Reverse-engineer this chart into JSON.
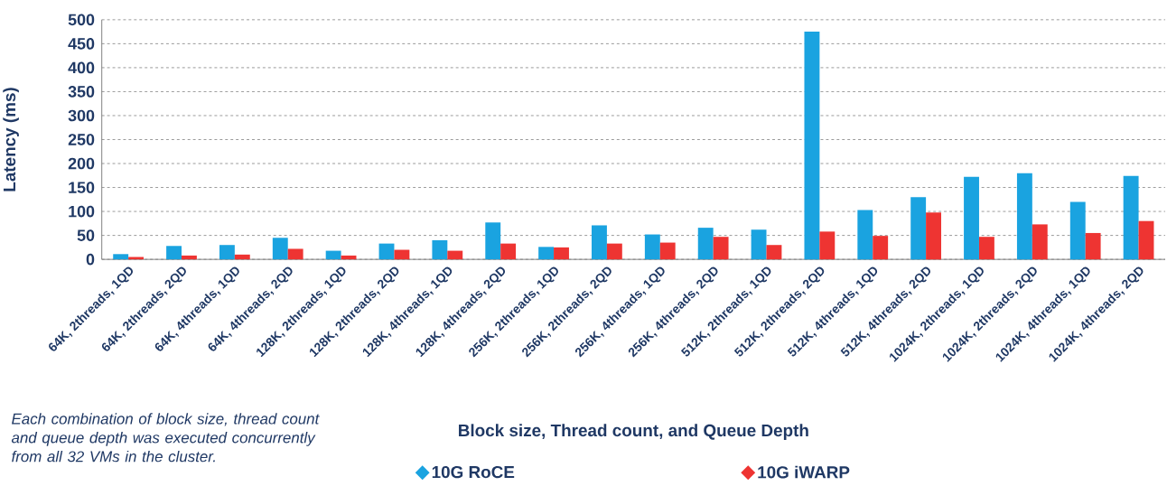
{
  "chart_data": {
    "type": "bar",
    "ylabel": "Latency (ms)",
    "xlabel": "Block size, Thread count, and Queue Depth",
    "categories": [
      "64K, 2threads, 1QD",
      "64K, 2threads, 2QD",
      "64K, 4threads, 1QD",
      "64K, 4threads, 2QD",
      "128K, 2threads, 1QD",
      "128K, 2threads, 2QD",
      "128K, 4threads, 1QD",
      "128K, 4threads, 2QD",
      "256K, 2threads, 1QD",
      "256K, 2threads, 2QD",
      "256K, 4threads, 1QD",
      "256K, 4threads, 2QD",
      "512K, 2threads, 1QD",
      "512K, 2threads, 2QD",
      "512K, 4threads, 1QD",
      "512K, 4threads, 2QD",
      "1024K, 2threads, 1QD",
      "1024K, 2threads, 2QD",
      "1024K, 4threads, 1QD",
      "1024K, 4threads, 2QD"
    ],
    "series": [
      {
        "name": "10G RoCE",
        "color": "#1aa3e0",
        "values": [
          11,
          28,
          30,
          45,
          18,
          33,
          40,
          77,
          26,
          71,
          52,
          66,
          62,
          475,
          103,
          130,
          172,
          180,
          120,
          174
        ]
      },
      {
        "name": "10G iWARP",
        "color": "#ee3432",
        "values": [
          5,
          8,
          10,
          22,
          8,
          20,
          18,
          33,
          25,
          33,
          35,
          47,
          30,
          58,
          49,
          98,
          47,
          73,
          55,
          80
        ]
      }
    ],
    "ylim": [
      0,
      500
    ],
    "yticks": [
      0,
      50,
      100,
      150,
      200,
      250,
      300,
      350,
      400,
      450,
      500
    ],
    "grid": "y",
    "legend": "bottom",
    "annotations": [
      "Each combination of block size, thread count and queue depth was executed concurrently from all 32 VMs in the cluster."
    ]
  }
}
